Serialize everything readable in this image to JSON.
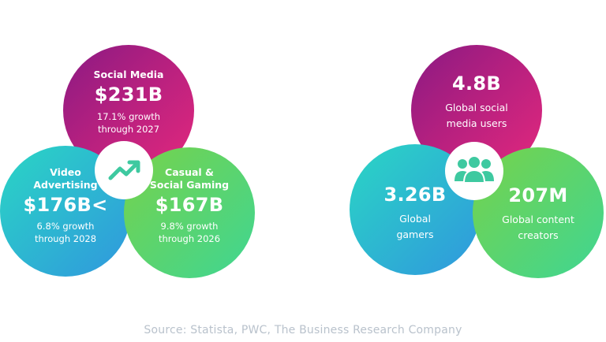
{
  "left_cluster": {
    "social_media": {
      "label": "Social Media",
      "value": "$231B",
      "growth": "17.1% growth",
      "period": "through 2027"
    },
    "video_advertising": {
      "label_line1": "Video",
      "label_line2": "Advertising",
      "value": "$176B<",
      "growth": "6.8% growth",
      "period": "through 2028"
    },
    "casual_gaming": {
      "label_line1": "Casual &",
      "label_line2": "Social Gaming",
      "value": "$167B",
      "growth": "9.8% growth",
      "period": "through 2026"
    },
    "hub_icon": "trending-up-icon"
  },
  "right_cluster": {
    "social_users": {
      "value": "4.8B",
      "line1": "Global social",
      "line2": "media users"
    },
    "gamers": {
      "value": "3.26B",
      "line1": "Global",
      "line2": "gamers"
    },
    "creators": {
      "value": "207M",
      "line1": "Global content",
      "line2": "creators"
    },
    "hub_icon": "users-group-icon"
  },
  "source": "Source: Statista, PWC, The Business Research Company",
  "colors": {
    "magenta_start": "#8a1a83",
    "magenta_end": "#e4287e",
    "teal_start": "#2ad6c4",
    "blue_end": "#3097de",
    "green_start": "#77d24a",
    "green_end": "#3fd693",
    "icon_green": "#3ec9a0"
  }
}
